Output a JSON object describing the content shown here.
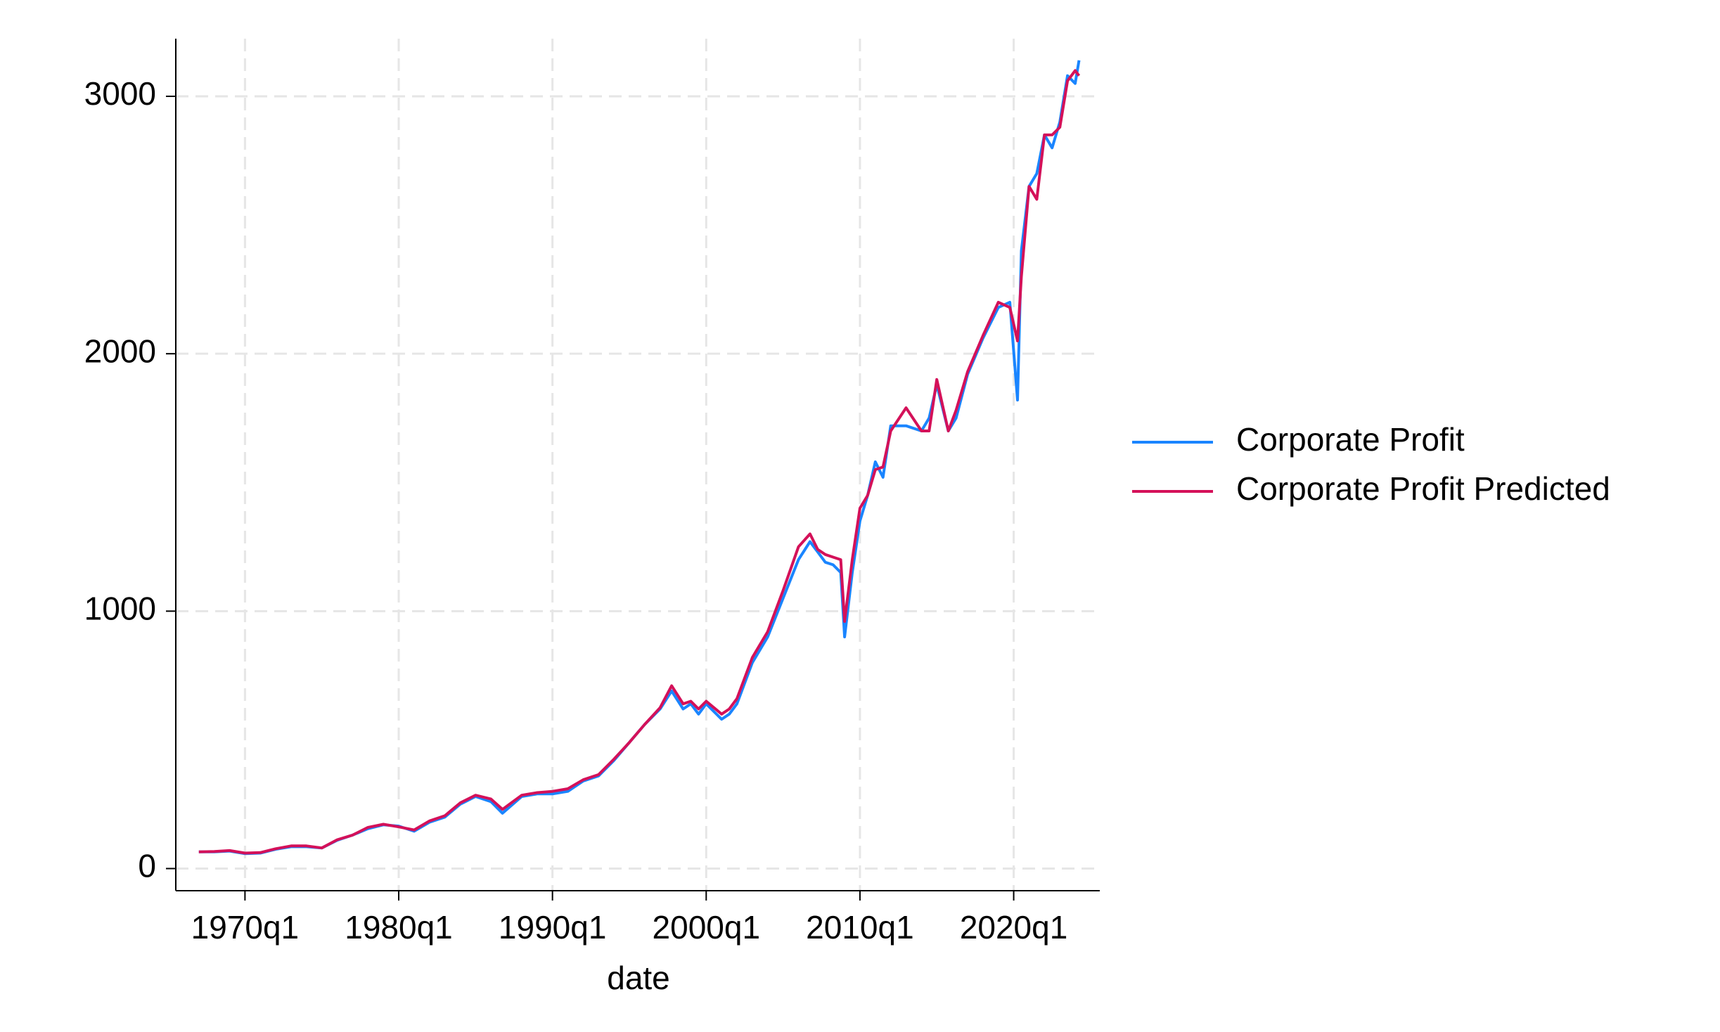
{
  "chart_data": {
    "type": "line",
    "x_label": "date",
    "x": [
      1967,
      1968,
      1969,
      1970,
      1971,
      1972,
      1973,
      1974,
      1975,
      1976,
      1977,
      1978,
      1979,
      1980,
      1981,
      1982,
      1983,
      1984,
      1985,
      1986,
      1986.75,
      1988,
      1989,
      1990,
      1991,
      1992,
      1993,
      1994,
      1995,
      1996,
      1997,
      1997.75,
      1998.5,
      1999,
      1999.5,
      2000,
      2001,
      2001.5,
      2002,
      2003,
      2004,
      2005,
      2006,
      2006.75,
      2007.25,
      2007.75,
      2008.25,
      2008.75,
      2009,
      2009.5,
      2010,
      2010.5,
      2011,
      2011.5,
      2012,
      2013,
      2014,
      2014.5,
      2015,
      2015.75,
      2016.25,
      2017,
      2018,
      2019,
      2019.75,
      2020.25,
      2020.5,
      2021,
      2021.5,
      2022,
      2022.5,
      2023,
      2023.5,
      2024,
      2024.25
    ],
    "series": [
      {
        "name": "Corporate Profit",
        "color": "#1a85ff",
        "values": [
          65,
          65,
          68,
          58,
          60,
          75,
          85,
          85,
          80,
          110,
          130,
          155,
          170,
          165,
          145,
          180,
          200,
          250,
          280,
          260,
          215,
          280,
          290,
          290,
          300,
          340,
          360,
          420,
          490,
          560,
          620,
          690,
          620,
          640,
          600,
          640,
          580,
          600,
          640,
          800,
          900,
          1050,
          1200,
          1270,
          1230,
          1190,
          1180,
          1150,
          900,
          1150,
          1350,
          1450,
          1580,
          1520,
          1720,
          1720,
          1700,
          1750,
          1880,
          1700,
          1750,
          1920,
          2060,
          2180,
          2200,
          1820,
          2400,
          2650,
          2700,
          2850,
          2800,
          2900,
          3080,
          3050,
          3140
        ]
      },
      {
        "name": "Corporate Profit Predicted",
        "color": "#d41159",
        "values": [
          65,
          66,
          70,
          60,
          62,
          77,
          88,
          88,
          80,
          112,
          130,
          160,
          172,
          162,
          150,
          185,
          205,
          255,
          285,
          270,
          230,
          285,
          295,
          300,
          310,
          345,
          365,
          425,
          490,
          560,
          625,
          710,
          640,
          650,
          620,
          650,
          600,
          620,
          660,
          820,
          920,
          1080,
          1250,
          1300,
          1240,
          1220,
          1210,
          1200,
          960,
          1200,
          1400,
          1450,
          1550,
          1560,
          1700,
          1790,
          1700,
          1700,
          1900,
          1700,
          1780,
          1930,
          2070,
          2200,
          2180,
          2050,
          2300,
          2650,
          2600,
          2850,
          2850,
          2880,
          3060,
          3100,
          3080
        ]
      }
    ],
    "xlim": [
      1965.5,
      2025.6
    ],
    "xticks": [
      {
        "value": 1970,
        "label": "1970q1"
      },
      {
        "value": 1980,
        "label": "1980q1"
      },
      {
        "value": 1990,
        "label": "1990q1"
      },
      {
        "value": 2000,
        "label": "2000q1"
      },
      {
        "value": 2010,
        "label": "2010q1"
      },
      {
        "value": 2020,
        "label": "2020q1"
      }
    ],
    "ylim": [
      -86,
      3224
    ],
    "yticks": [
      0,
      1000,
      2000,
      3000
    ],
    "grid": true,
    "legend": "right"
  }
}
